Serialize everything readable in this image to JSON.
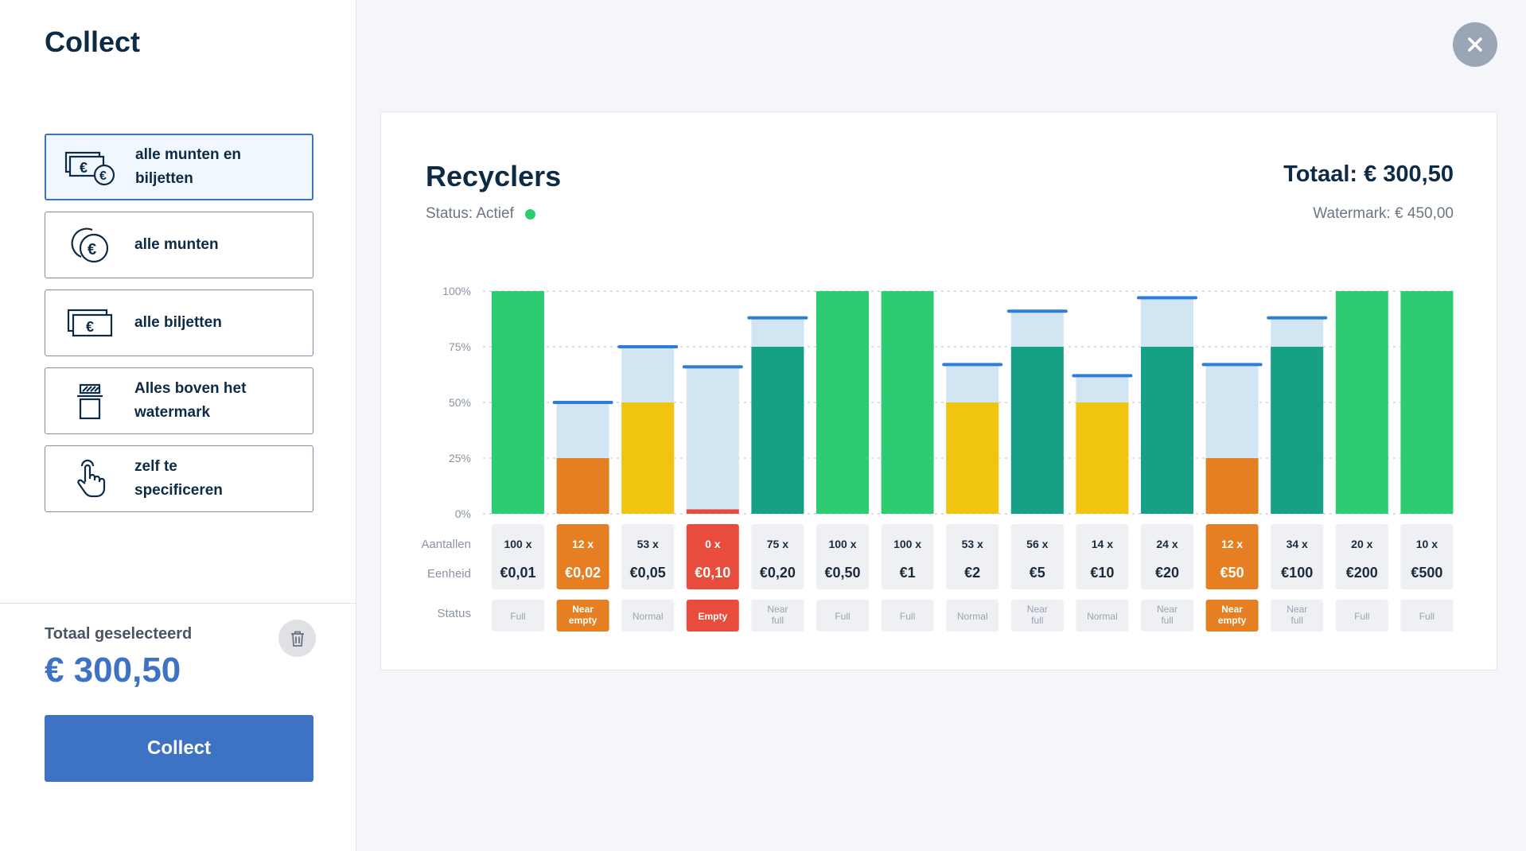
{
  "sidebar": {
    "title": "Collect",
    "options": [
      {
        "label": "alle munten en biljetten",
        "icon": "coins-and-bills-icon",
        "selected": true
      },
      {
        "label": "alle munten",
        "icon": "coins-icon",
        "selected": false
      },
      {
        "label": "alle biljetten",
        "icon": "bills-icon",
        "selected": false
      },
      {
        "label": "Alles boven het watermark",
        "icon": "watermark-icon",
        "selected": false
      },
      {
        "label": "zelf te specificeren",
        "icon": "hand-pointer-icon",
        "selected": false
      }
    ],
    "total_label": "Totaal geselecteerd",
    "total_value": "€ 300,50",
    "collect_label": "Collect",
    "trash_icon": "trash-icon"
  },
  "close_icon": "close-icon",
  "card": {
    "title": "Recyclers",
    "status_text": "Status: Actief",
    "status_color": "#2ecc71",
    "total": "Totaal: € 300,50",
    "watermark": "Watermark: € 450,00"
  },
  "chart_data": {
    "type": "bar",
    "y_ticks": [
      "100%",
      "75%",
      "50%",
      "25%",
      "0%"
    ],
    "ylim": [
      0,
      100
    ],
    "grid": true,
    "row_labels": {
      "counts": "Aantallen",
      "units": "Eenheid",
      "status": "Status"
    },
    "colors": {
      "full": "#2ecc71",
      "near_full": "#16a085",
      "normal": "#f1c40f",
      "near_empty": "#e67e22",
      "empty": "#e74c3c",
      "capacity": "#d2e5f3",
      "watermark": "#2e7dd7"
    },
    "bars": [
      {
        "count": "100 x",
        "unit": "€0,01",
        "status": "Full",
        "level": "full",
        "fill": 100,
        "watermark": null
      },
      {
        "count": "12 x",
        "unit": "€0,02",
        "status": "Near empty",
        "level": "near_empty",
        "fill": 25,
        "watermark": 50
      },
      {
        "count": "53 x",
        "unit": "€0,05",
        "status": "Normal",
        "level": "normal",
        "fill": 50,
        "watermark": 75
      },
      {
        "count": "0 x",
        "unit": "€0,10",
        "status": "Empty",
        "level": "empty",
        "fill": 2,
        "watermark": 66
      },
      {
        "count": "75 x",
        "unit": "€0,20",
        "status": "Near full",
        "level": "near_full",
        "fill": 75,
        "watermark": 88
      },
      {
        "count": "100 x",
        "unit": "€0,50",
        "status": "Full",
        "level": "full",
        "fill": 100,
        "watermark": null
      },
      {
        "count": "100 x",
        "unit": "€1",
        "status": "Full",
        "level": "full",
        "fill": 100,
        "watermark": null
      },
      {
        "count": "53 x",
        "unit": "€2",
        "status": "Normal",
        "level": "normal",
        "fill": 50,
        "watermark": 67
      },
      {
        "count": "56 x",
        "unit": "€5",
        "status": "Near full",
        "level": "near_full",
        "fill": 75,
        "watermark": 91
      },
      {
        "count": "14 x",
        "unit": "€10",
        "status": "Normal",
        "level": "normal",
        "fill": 50,
        "watermark": 62
      },
      {
        "count": "24 x",
        "unit": "€20",
        "status": "Near full",
        "level": "near_full",
        "fill": 75,
        "watermark": 97
      },
      {
        "count": "12 x",
        "unit": "€50",
        "status": "Near empty",
        "level": "near_empty",
        "fill": 25,
        "watermark": 67
      },
      {
        "count": "34 x",
        "unit": "€100",
        "status": "Near full",
        "level": "near_full",
        "fill": 75,
        "watermark": 88
      },
      {
        "count": "20 x",
        "unit": "€200",
        "status": "Full",
        "level": "full",
        "fill": 100,
        "watermark": null
      },
      {
        "count": "10 x",
        "unit": "€500",
        "status": "Full",
        "level": "full",
        "fill": 100,
        "watermark": null
      }
    ]
  }
}
